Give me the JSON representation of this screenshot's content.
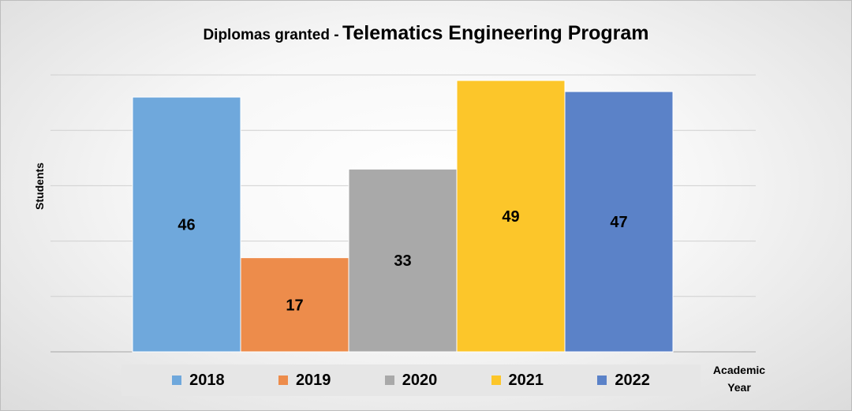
{
  "chart_data": {
    "type": "bar",
    "title_prefix": "Diplomas granted -",
    "title_main": "Telematics Engineering Program",
    "ylabel": "Students",
    "xlabel_line1": "Academic",
    "xlabel_line2": "Year",
    "categories": [
      "2018",
      "2019",
      "2020",
      "2021",
      "2022"
    ],
    "values": [
      46,
      17,
      33,
      49,
      47
    ],
    "colors": [
      "#6fa8dc",
      "#ed8c4b",
      "#a9a9a9",
      "#fcc62a",
      "#5b82c8"
    ],
    "ylim": [
      0,
      50
    ],
    "gridlines": [
      10,
      20,
      30,
      40,
      50
    ],
    "grid": true,
    "legend_position": "bottom"
  }
}
